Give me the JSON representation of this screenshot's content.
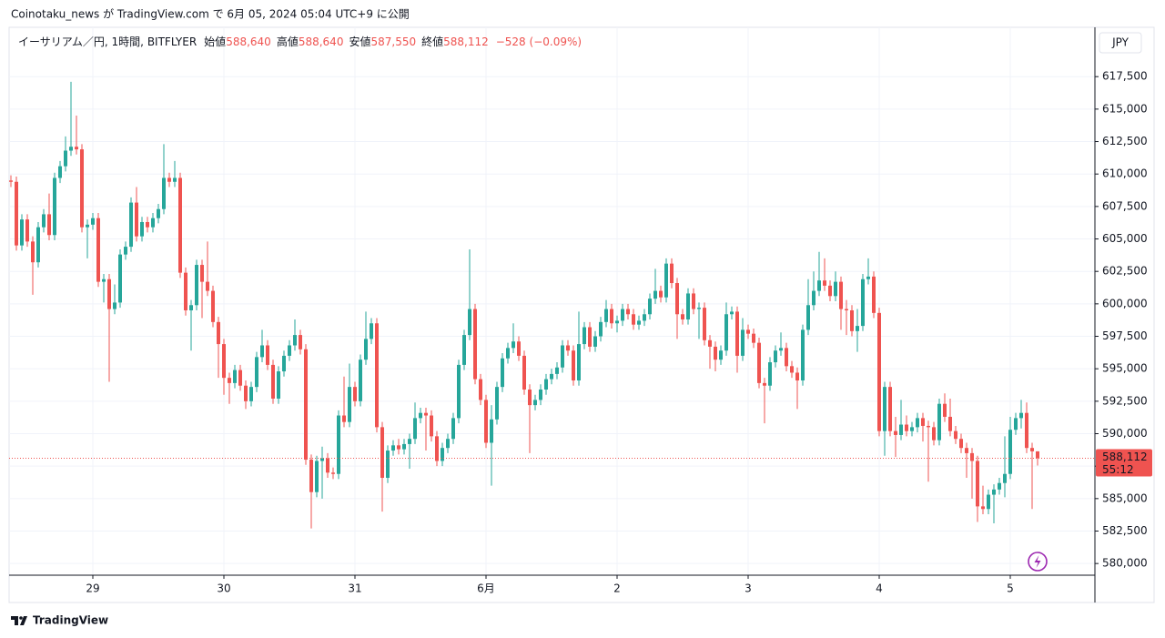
{
  "chart_data": {
    "type": "candlestick",
    "published": "Coinotaku_news が TradingView.com で 6月 05, 2024 05:04 UTC+9 に公開",
    "symbol": "イーサリアム／円, 1時間, BITFLYER",
    "legend": [
      {
        "label": "始値",
        "value": "588,640"
      },
      {
        "label": "高値",
        "value": "588,640"
      },
      {
        "label": "安値",
        "value": "587,550"
      },
      {
        "label": "終値",
        "value": "588,112"
      }
    ],
    "change": "−528 (−0.09%)",
    "currency": "JPY",
    "last_price": {
      "value": 588112,
      "label": "588,112"
    },
    "countdown": "55:12",
    "brand": "TradingView",
    "up_color": "#26a69a",
    "down_color": "#ef5350",
    "grid": true,
    "ylim": [
      579100,
      621300
    ],
    "yticks": [
      {
        "value": 580000,
        "label": "580,000"
      },
      {
        "value": 582500,
        "label": "582,500"
      },
      {
        "value": 585000,
        "label": "585,000"
      },
      {
        "value": 587500,
        "label": "587,500"
      },
      {
        "value": 590000,
        "label": "590,000"
      },
      {
        "value": 592500,
        "label": "592,500"
      },
      {
        "value": 595000,
        "label": "595,000"
      },
      {
        "value": 597500,
        "label": "597,500"
      },
      {
        "value": 600000,
        "label": "600,000"
      },
      {
        "value": 602500,
        "label": "602,500"
      },
      {
        "value": 605000,
        "label": "605,000"
      },
      {
        "value": 607500,
        "label": "607,500"
      },
      {
        "value": 610000,
        "label": "610,000"
      },
      {
        "value": 612500,
        "label": "612,500"
      },
      {
        "value": 615000,
        "label": "615,000"
      },
      {
        "value": 617500,
        "label": "617,500"
      }
    ],
    "xticks": [
      {
        "value": 15,
        "label": "29"
      },
      {
        "value": 39,
        "label": "30"
      },
      {
        "value": 63,
        "label": "31"
      },
      {
        "value": 87,
        "label": "6月"
      },
      {
        "value": 111,
        "label": "2"
      },
      {
        "value": 135,
        "label": "3"
      },
      {
        "value": 159,
        "label": "4"
      },
      {
        "value": 183,
        "label": "5"
      }
    ],
    "open": [
      609500,
      609400,
      604500,
      606500,
      604800,
      603200,
      605900,
      606900,
      605300,
      609700,
      610600,
      611800,
      612100,
      611900,
      605900,
      606100,
      606600,
      601700,
      601900,
      599600,
      600100,
      603800,
      604400,
      607800,
      605200,
      606300,
      605900,
      606600,
      607300,
      609700,
      609400,
      609700,
      602400,
      599500,
      599900,
      603000,
      601700,
      601000,
      598600,
      596900,
      594300,
      593900,
      594900,
      593700,
      592500,
      593600,
      595900,
      596800,
      595300,
      592700,
      594800,
      596000,
      596800,
      597600,
      596500,
      588000,
      585500,
      587900,
      588100,
      587000,
      586900,
      591400,
      590900,
      593600,
      592500,
      595700,
      597300,
      598500,
      590500,
      586600,
      588700,
      589100,
      588800,
      589200,
      589600,
      591200,
      591600,
      591400,
      589800,
      587900,
      588900,
      589600,
      591200,
      595300,
      597600,
      599600,
      594200,
      592600,
      589300,
      591100,
      593600,
      595800,
      596600,
      597100,
      596000,
      593400,
      592200,
      592600,
      593400,
      594200,
      594600,
      595100,
      596800,
      596400,
      594100,
      596900,
      598200,
      596700,
      597500,
      598600,
      599600,
      598500,
      598700,
      599600,
      599200,
      598400,
      598700,
      599200,
      600400,
      601000,
      600500,
      603100,
      601600,
      599200,
      598800,
      600800,
      599600,
      599700,
      597200,
      596700,
      595700,
      596400,
      599200,
      599400,
      596000,
      598000,
      597700,
      597000,
      593900,
      593700,
      595500,
      596400,
      596600,
      595200,
      594700,
      594100,
      598000,
      599900,
      601000,
      601800,
      601400,
      600600,
      601700,
      599600,
      599500,
      597900,
      598300,
      601900,
      602100,
      599300,
      590200,
      593600,
      590200,
      589900,
      590700,
      590200,
      590500,
      591200,
      590600,
      590500,
      589500,
      592300,
      591300,
      590200,
      589600,
      588900,
      588500,
      587900,
      584400,
      584200,
      585300,
      585700,
      586200,
      586900,
      590300,
      591200,
      591600,
      588900,
      588640
    ],
    "high": [
      609900,
      609800,
      606900,
      606900,
      605200,
      606300,
      607300,
      608500,
      610100,
      611000,
      612900,
      617100,
      614500,
      612300,
      606500,
      607000,
      607000,
      602300,
      602300,
      601500,
      604200,
      604800,
      608200,
      609000,
      606700,
      606700,
      607000,
      607700,
      612300,
      610100,
      611000,
      610100,
      602800,
      600300,
      603400,
      603400,
      604800,
      601400,
      599000,
      597300,
      594700,
      595300,
      595300,
      594100,
      594000,
      596300,
      598000,
      597200,
      595700,
      595200,
      596400,
      597200,
      598800,
      598000,
      596900,
      588400,
      588300,
      589000,
      588500,
      587400,
      591800,
      594400,
      595400,
      594000,
      596100,
      599400,
      598900,
      598900,
      590900,
      589100,
      589500,
      589600,
      589600,
      590000,
      592400,
      592000,
      592000,
      591800,
      590200,
      589300,
      590000,
      591600,
      595700,
      598000,
      604200,
      600000,
      594600,
      593000,
      592200,
      594000,
      596200,
      597000,
      598500,
      597500,
      596400,
      593800,
      593000,
      593800,
      594600,
      595000,
      595500,
      597200,
      597200,
      596800,
      599400,
      598600,
      598600,
      597900,
      599000,
      600300,
      600000,
      599100,
      600000,
      600000,
      599600,
      599100,
      599600,
      600800,
      602700,
      601400,
      603500,
      603500,
      602000,
      599600,
      601200,
      601200,
      600100,
      600100,
      597600,
      597100,
      596800,
      600100,
      599800,
      599800,
      598900,
      598400,
      598100,
      597400,
      594300,
      595900,
      596800,
      597800,
      597000,
      595600,
      595100,
      598400,
      601900,
      602500,
      604000,
      603500,
      601800,
      602500,
      602100,
      600300,
      599900,
      599600,
      602300,
      603500,
      602500,
      599700,
      594000,
      594000,
      591300,
      592600,
      591400,
      590900,
      591600,
      591600,
      591000,
      590900,
      592700,
      593100,
      592700,
      590600,
      590000,
      589300,
      588900,
      588300,
      586000,
      585700,
      586100,
      586600,
      589800,
      591300,
      591600,
      592600,
      592400,
      589300,
      588640
    ],
    "low": [
      609000,
      604100,
      604100,
      604400,
      600700,
      602800,
      605500,
      604900,
      604900,
      609300,
      610200,
      611400,
      611500,
      605500,
      603500,
      605700,
      601300,
      600100,
      594000,
      599200,
      599700,
      603400,
      604000,
      604800,
      604800,
      605500,
      605500,
      606200,
      606900,
      609000,
      609000,
      602000,
      599100,
      596400,
      599500,
      598900,
      600600,
      598200,
      594300,
      593000,
      592300,
      593500,
      593300,
      591900,
      592100,
      593200,
      595500,
      594900,
      592300,
      592300,
      594400,
      595600,
      596400,
      596100,
      587600,
      582700,
      585100,
      585000,
      586600,
      586500,
      586500,
      590500,
      590500,
      592100,
      592100,
      595300,
      596900,
      590100,
      584000,
      586200,
      588300,
      588400,
      588400,
      587300,
      589200,
      590800,
      588700,
      589400,
      587500,
      587500,
      588500,
      589200,
      590800,
      594900,
      597200,
      593800,
      592200,
      588900,
      586000,
      590700,
      593200,
      595400,
      596200,
      595600,
      593000,
      588500,
      591800,
      592200,
      593000,
      593800,
      594200,
      594700,
      596000,
      593700,
      593700,
      596500,
      596300,
      596300,
      597100,
      598200,
      598100,
      597800,
      598300,
      598800,
      598000,
      598000,
      598300,
      598800,
      600000,
      600100,
      600100,
      601200,
      597300,
      598400,
      598400,
      599200,
      597300,
      596800,
      595000,
      594800,
      595300,
      596000,
      598800,
      594700,
      595600,
      597300,
      596600,
      593500,
      590800,
      593300,
      595100,
      596000,
      594800,
      594300,
      591900,
      593700,
      597600,
      599500,
      600600,
      601000,
      600200,
      600200,
      598000,
      597600,
      597500,
      596300,
      597900,
      601500,
      598900,
      589800,
      588300,
      589800,
      588200,
      589500,
      589800,
      589800,
      590100,
      589400,
      586300,
      589100,
      589100,
      590900,
      589800,
      589200,
      588500,
      586600,
      585000,
      583200,
      583800,
      583800,
      583100,
      585300,
      585100,
      586500,
      589900,
      590400,
      588500,
      584200,
      587550
    ],
    "close": [
      609400,
      604500,
      606500,
      604800,
      603200,
      605900,
      606900,
      605300,
      609700,
      610600,
      611800,
      612100,
      611900,
      605900,
      606100,
      606600,
      601700,
      601900,
      599600,
      600100,
      603800,
      604400,
      607800,
      605200,
      606300,
      605900,
      606600,
      607300,
      609700,
      609400,
      609700,
      602400,
      599500,
      599900,
      603000,
      601700,
      601000,
      598600,
      596900,
      594300,
      593900,
      594900,
      593700,
      592500,
      593600,
      595900,
      596800,
      595300,
      592700,
      594800,
      596000,
      596800,
      597600,
      596500,
      588000,
      585500,
      587900,
      588100,
      587000,
      586900,
      591400,
      590900,
      593600,
      592500,
      595700,
      597300,
      598500,
      590500,
      586600,
      588700,
      589100,
      588800,
      589200,
      589600,
      591200,
      591600,
      591400,
      589800,
      587900,
      588900,
      589600,
      591200,
      595300,
      597600,
      599600,
      594200,
      592600,
      589300,
      591100,
      593600,
      595800,
      596600,
      597100,
      596000,
      593400,
      592200,
      592600,
      593400,
      594200,
      594600,
      595100,
      596800,
      596400,
      594100,
      596900,
      598200,
      596700,
      597500,
      598600,
      599600,
      598500,
      598700,
      599600,
      599200,
      598400,
      598700,
      599200,
      600400,
      601000,
      600500,
      603100,
      601600,
      599200,
      598800,
      600800,
      599600,
      599700,
      597200,
      596700,
      595700,
      596400,
      599200,
      599400,
      596000,
      598000,
      597700,
      597000,
      593900,
      593700,
      595500,
      596400,
      596600,
      595200,
      594700,
      594100,
      598000,
      599900,
      601000,
      601800,
      601400,
      600600,
      601700,
      599600,
      599500,
      597900,
      598300,
      601900,
      602100,
      599300,
      590200,
      593600,
      590200,
      589900,
      590700,
      590200,
      590500,
      591200,
      590600,
      590500,
      589500,
      592300,
      591300,
      590200,
      589600,
      588900,
      588500,
      587900,
      584400,
      584200,
      585300,
      585700,
      586200,
      586900,
      590300,
      591200,
      591600,
      588900,
      588640,
      588112
    ]
  }
}
